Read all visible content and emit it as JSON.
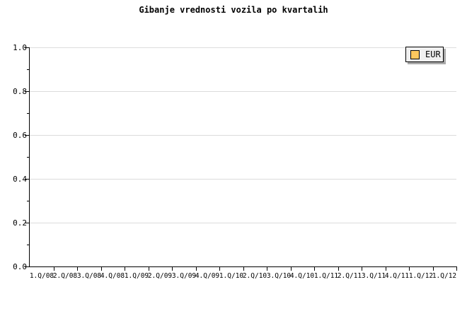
{
  "title": "Gibanje vrednosti vozila po kvartalih",
  "colors": {
    "background": "#FFFFFF",
    "axis": "#000000",
    "text": "#000000",
    "gridline": "#DCDCDC",
    "legend_background": "#F0F0F0",
    "legend_border": "#000000",
    "legend_shadow": "#A9A9A9",
    "series_eur": "#FCC85F"
  },
  "legend": {
    "items": [
      {
        "label": "EUR",
        "swatch_color": "#FCC85F"
      }
    ]
  },
  "chart_data": {
    "type": "line",
    "title": "Gibanje vrednosti vozila po kvartalih",
    "categories": [
      "1.Q/08",
      "2.Q/08",
      "3.Q/08",
      "4.Q/08",
      "1.Q/09",
      "2.Q/09",
      "3.Q/09",
      "4.Q/09",
      "1.Q/10",
      "2.Q/10",
      "3.Q/10",
      "4.Q/10",
      "1.Q/11",
      "2.Q/11",
      "3.Q/11",
      "4.Q/11",
      "1.Q/12",
      "1.Q/12"
    ],
    "series": [
      {
        "name": "EUR",
        "color": "#FCC85F",
        "values": []
      }
    ],
    "xlabel": "",
    "ylabel": "",
    "ylim": [
      0.0,
      1.0
    ],
    "y_major_ticks": [
      "0.0",
      "0.2",
      "0.4",
      "0.6",
      "0.8",
      "1.0"
    ],
    "y_minor_step": 0.1,
    "grid": true,
    "legend_position": "top-right-inside"
  }
}
